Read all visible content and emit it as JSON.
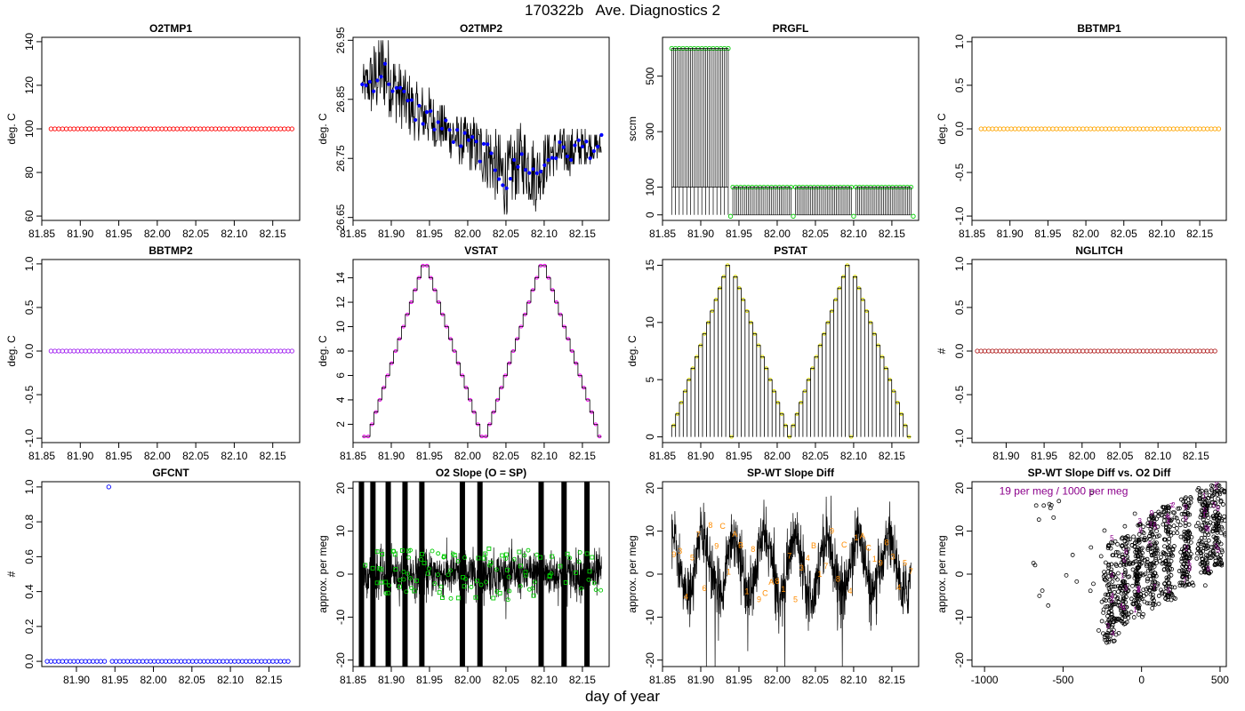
{
  "page": {
    "title": "170322b   Ave. Diagnostics 2",
    "xlabel": "day of year"
  },
  "colors": {
    "red": "#ff0000",
    "blue": "#0000ff",
    "green": "#00cc00",
    "orange": "#ffa500",
    "purple": "#a020f0",
    "magenta": "#ff00ff",
    "yellow": "#e6e600",
    "brown": "#b22222",
    "darkorange": "#ff8c00",
    "darkmagenta": "#8b008b",
    "black": "#000000"
  },
  "chart_data": [
    {
      "id": "o2tmp1",
      "type": "scatter",
      "title": "O2TMP1",
      "ylabel": "deg. C",
      "xlim": [
        81.85,
        82.185
      ],
      "ylim": [
        58,
        142
      ],
      "xticks": [
        "81.85",
        "81.90",
        "81.95",
        "82.00",
        "82.05",
        "82.10",
        "82.15"
      ],
      "yticks": [
        "60",
        "80",
        "100",
        "120",
        "140"
      ],
      "series": [
        {
          "color": "red",
          "x_start": 81.862,
          "x_end": 82.175,
          "count": 64,
          "value": 100
        }
      ]
    },
    {
      "id": "o2tmp2",
      "type": "line",
      "title": "O2TMP2",
      "ylabel": "deg. C",
      "xlim": [
        81.85,
        82.185
      ],
      "ylim": [
        26.645,
        26.955
      ],
      "xticks": [
        "81.85",
        "81.90",
        "81.95",
        "82.00",
        "82.05",
        "82.10",
        "82.15"
      ],
      "yticks": [
        "26.65",
        "26.75",
        "26.85",
        "26.95"
      ],
      "trend_x": [
        81.862,
        81.875,
        81.89,
        81.91,
        81.93,
        81.95,
        81.97,
        81.99,
        82.01,
        82.03,
        82.05,
        82.07,
        82.09,
        82.11,
        82.13,
        82.15,
        82.175
      ],
      "trend_y": [
        26.87,
        26.88,
        26.9,
        26.86,
        26.83,
        26.82,
        26.8,
        26.78,
        26.77,
        26.75,
        26.71,
        26.75,
        26.72,
        26.76,
        26.76,
        26.77,
        26.77
      ],
      "spread": [
        0.03,
        0.06,
        0.07,
        0.06,
        0.05,
        0.05,
        0.04,
        0.04,
        0.05,
        0.06,
        0.07,
        0.06,
        0.06,
        0.04,
        0.04,
        0.03,
        0.02
      ],
      "series": [
        {
          "color": "blue",
          "type": "points"
        }
      ]
    },
    {
      "id": "prgfl",
      "type": "line",
      "title": "PRGFL",
      "ylabel": "sccm",
      "xlim": [
        81.85,
        82.185
      ],
      "ylim": [
        -20,
        640
      ],
      "xticks": [
        "81.85",
        "81.90",
        "81.95",
        "82.00",
        "82.05",
        "82.10",
        "82.15"
      ],
      "yticks": [
        "0",
        "100",
        "300",
        "500"
      ],
      "segments": [
        {
          "x_start": 81.862,
          "x_end": 81.936,
          "high": 600,
          "low": 100
        },
        {
          "x_start": 81.942,
          "x_end": 82.018,
          "high": 100,
          "low": 0
        },
        {
          "x_start": 82.024,
          "x_end": 82.097,
          "high": 100,
          "low": 0
        },
        {
          "x_start": 82.103,
          "x_end": 82.175,
          "high": 100,
          "low": 0
        }
      ],
      "dips_x": [
        81.939,
        82.021,
        82.1,
        82.178
      ],
      "series": [
        {
          "color": "green",
          "type": "points"
        }
      ]
    },
    {
      "id": "bbtmp1",
      "type": "scatter",
      "title": "BBTMP1",
      "ylabel": "deg. C",
      "xlim": [
        81.85,
        82.185
      ],
      "ylim": [
        -1.05,
        1.05
      ],
      "xticks": [
        "81.85",
        "81.90",
        "81.95",
        "82.00",
        "82.05",
        "82.10",
        "82.15"
      ],
      "yticks": [
        "-1.0",
        "-0.5",
        "0.0",
        "0.5",
        "1.0"
      ],
      "series": [
        {
          "color": "orange",
          "x_start": 81.862,
          "x_end": 82.175,
          "count": 64,
          "value": 0
        }
      ]
    },
    {
      "id": "bbtmp2",
      "type": "scatter",
      "title": "BBTMP2",
      "ylabel": "deg. C",
      "xlim": [
        81.85,
        82.185
      ],
      "ylim": [
        -1.05,
        1.05
      ],
      "xticks": [
        "81.85",
        "81.90",
        "81.95",
        "82.00",
        "82.05",
        "82.10",
        "82.15"
      ],
      "yticks": [
        "-1.0",
        "-0.5",
        "0.0",
        "0.5",
        "1.0"
      ],
      "series": [
        {
          "color": "purple",
          "x_start": 81.862,
          "x_end": 82.175,
          "count": 64,
          "value": 0
        }
      ]
    },
    {
      "id": "vstat",
      "type": "line",
      "title": "VSTAT",
      "ylabel": "deg. C",
      "xlim": [
        81.85,
        82.185
      ],
      "ylim": [
        0.5,
        15.5
      ],
      "xticks": [
        "81.85",
        "81.90",
        "81.95",
        "82.00",
        "82.05",
        "82.10",
        "82.15"
      ],
      "yticks": [
        "2",
        "4",
        "6",
        "8",
        "10",
        "12",
        "14"
      ],
      "levels": [
        1,
        1,
        2,
        3,
        4,
        5,
        6,
        7,
        8,
        9,
        10,
        11,
        12,
        13,
        14,
        15,
        15,
        14,
        13,
        12,
        11,
        10,
        9,
        8,
        7,
        6,
        5,
        4,
        3,
        2,
        1,
        1,
        2,
        3,
        4,
        5,
        6,
        7,
        8,
        9,
        10,
        11,
        12,
        13,
        14,
        15,
        15,
        14,
        13,
        12,
        11,
        10,
        9,
        8,
        7,
        6,
        5,
        4,
        3,
        2,
        1
      ],
      "x_start": 81.862,
      "x_end": 82.175,
      "series": [
        {
          "color": "magenta",
          "type": "points"
        }
      ]
    },
    {
      "id": "pstat",
      "type": "line",
      "title": "PSTAT",
      "ylabel": "deg. C",
      "xlim": [
        81.85,
        82.185
      ],
      "ylim": [
        -0.5,
        15.5
      ],
      "xticks": [
        "81.85",
        "81.90",
        "81.95",
        "82.00",
        "82.05",
        "82.10",
        "82.15"
      ],
      "yticks": [
        "0",
        "5",
        "10",
        "15"
      ],
      "levels": [
        1,
        2,
        3,
        4,
        5,
        6,
        7,
        8,
        9,
        10,
        11,
        12,
        13,
        14,
        15,
        0,
        14,
        13,
        12,
        11,
        10,
        9,
        8,
        7,
        6,
        5,
        4,
        3,
        2,
        1,
        0,
        1,
        2,
        3,
        4,
        5,
        6,
        7,
        8,
        9,
        10,
        11,
        12,
        13,
        14,
        15,
        0,
        14,
        13,
        12,
        11,
        10,
        9,
        8,
        7,
        6,
        5,
        4,
        3,
        2,
        1,
        0
      ],
      "x_start": 81.862,
      "x_end": 82.175,
      "series": [
        {
          "color": "yellow",
          "type": "points"
        }
      ]
    },
    {
      "id": "nglitch",
      "type": "scatter",
      "title": "NGLITCH",
      "ylabel": "#",
      "xlim": [
        81.855,
        82.19
      ],
      "ylim": [
        -1.05,
        1.05
      ],
      "xticks": [
        "81.90",
        "81.95",
        "82.00",
        "82.05",
        "82.10",
        "82.15"
      ],
      "yticks": [
        "-1.0",
        "-0.5",
        "0.0",
        "0.5",
        "1.0"
      ],
      "series": [
        {
          "color": "brown",
          "x_start": 81.862,
          "x_end": 82.175,
          "count": 64,
          "value": 0
        }
      ]
    },
    {
      "id": "gfcnt",
      "type": "scatter",
      "title": "GFCNT",
      "ylabel": "#",
      "xlim": [
        81.855,
        82.19
      ],
      "ylim": [
        -0.03,
        1.03
      ],
      "xticks": [
        "81.90",
        "81.95",
        "82.00",
        "82.05",
        "82.10",
        "82.15"
      ],
      "yticks": [
        "0.0",
        "0.2",
        "0.4",
        "0.6",
        "0.8",
        "1.0"
      ],
      "series": [
        {
          "color": "blue",
          "x_start": 81.862,
          "x_end": 82.175,
          "count": 64,
          "value": 0,
          "gap_at": 81.94,
          "outlier": [
            81.942,
            1.0
          ]
        }
      ]
    },
    {
      "id": "o2slope",
      "type": "line",
      "title": "O2 Slope (O = SP)",
      "ylabel": "approx. per meg",
      "xlim": [
        81.85,
        82.185
      ],
      "ylim": [
        -21.5,
        21.5
      ],
      "xticks": [
        "81.85",
        "81.90",
        "81.95",
        "82.00",
        "82.05",
        "82.10",
        "82.15"
      ],
      "yticks": [
        "-20",
        "-10",
        "0",
        "10",
        "20"
      ],
      "bands_x": [
        81.861,
        81.876,
        81.896,
        81.918,
        81.94,
        81.993,
        82.016,
        82.096,
        82.126,
        82.156
      ],
      "noise_range": [
        -6,
        6
      ],
      "series": [
        {
          "color": "green",
          "markers": [
            "circle",
            "square"
          ]
        }
      ]
    },
    {
      "id": "spwt",
      "type": "line",
      "title": "SP-WT Slope Diff",
      "ylabel": "approx. per meg",
      "xlim": [
        81.85,
        82.185
      ],
      "ylim": [
        -21.5,
        21.5
      ],
      "xticks": [
        "81.85",
        "81.90",
        "81.95",
        "82.00",
        "82.05",
        "82.10",
        "82.15"
      ],
      "yticks": [
        "-20",
        "-10",
        "0",
        "10",
        "20"
      ],
      "labels": [
        "9",
        "3",
        "4",
        "5",
        "7",
        "6",
        "8",
        "9",
        "C",
        "1",
        "A",
        "B",
        "1",
        "8",
        "9",
        "C",
        "A",
        "8",
        "1",
        "7",
        "5",
        "3",
        "4",
        "B",
        "1",
        "7",
        "9",
        "8",
        "C",
        "4",
        "1",
        "A",
        "C",
        "1",
        "9",
        "8",
        "3",
        "4",
        "5",
        "7"
      ],
      "series": [
        {
          "color": "darkorange",
          "type": "labels"
        }
      ]
    },
    {
      "id": "spwt-vs-o2",
      "type": "scatter",
      "title": "SP-WT Slope Diff vs. O2 Diff",
      "ylabel": "approx. per meg",
      "xlim": [
        -1080,
        540
      ],
      "ylim": [
        -21.5,
        21.5
      ],
      "xticks": [
        "-1000",
        "-500",
        "0",
        "500"
      ],
      "yticks": [
        "-20",
        "-10",
        "0",
        "10",
        "20"
      ],
      "annotation": "19 per meg / 1000 per meg",
      "clusters": [
        {
          "x": -200,
          "ymin": -16,
          "ymax": 8
        },
        {
          "x": -110,
          "ymin": -12,
          "ymax": 9
        },
        {
          "x": -20,
          "ymin": -10,
          "ymax": 12
        },
        {
          "x": 70,
          "ymin": -8,
          "ymax": 14
        },
        {
          "x": 170,
          "ymin": -6,
          "ymax": 16
        },
        {
          "x": 280,
          "ymin": -3,
          "ymax": 18
        },
        {
          "x": 400,
          "ymin": 0,
          "ymax": 20
        },
        {
          "x": 480,
          "ymin": 2,
          "ymax": 21
        }
      ],
      "series": [
        {
          "color": "black",
          "type": "points"
        },
        {
          "color": "darkmagenta",
          "type": "labels"
        }
      ]
    }
  ]
}
